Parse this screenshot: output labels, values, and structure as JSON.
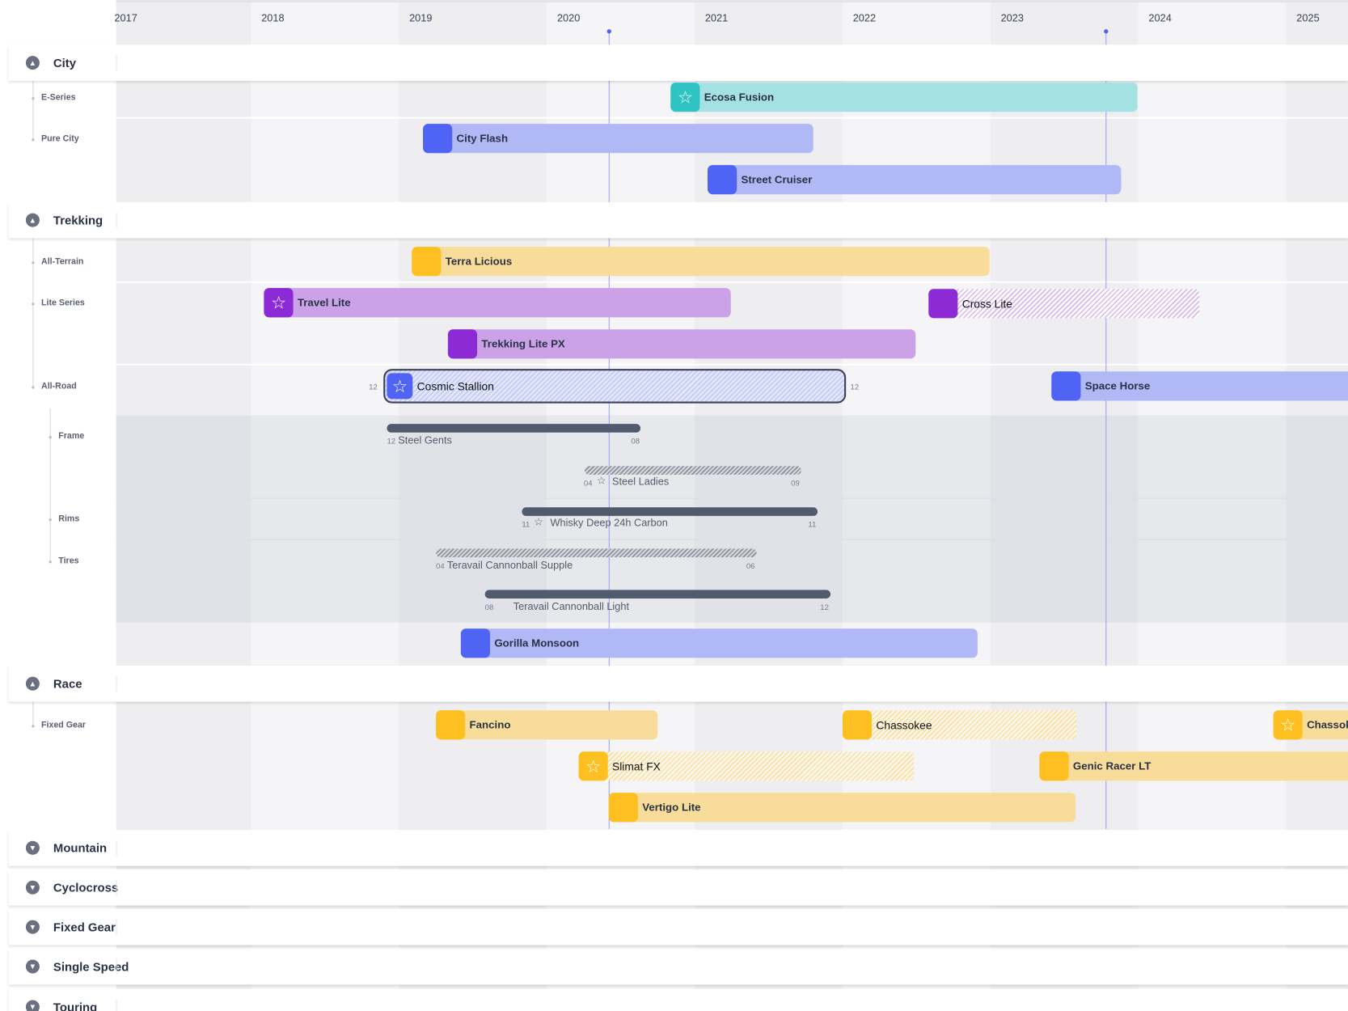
{
  "timeline": {
    "years": [
      "2017",
      "2018",
      "2019",
      "2020",
      "2021",
      "2022",
      "2023",
      "2024",
      "2025"
    ]
  },
  "colors": {
    "blue": "#4f63f5",
    "blue_light": "#b0b8f5",
    "teal": "#2ec4c4",
    "teal_light": "#a3e1e2",
    "yellow": "#fdc020",
    "yellow_light": "#f8dd9a",
    "purple": "#8c2bd6",
    "purple_light": "#cba2e8",
    "sub_bar": "#525a6e",
    "today_line": "#9aa2f2"
  },
  "groups": [
    {
      "label": "City",
      "expanded": true,
      "rows": [
        "E-Series",
        "Pure City"
      ]
    },
    {
      "label": "Trekking",
      "expanded": true,
      "rows": [
        "All-Terrain",
        "Lite Series",
        "All-Road"
      ],
      "subrows": [
        "Frame",
        "Rims",
        "Tires"
      ]
    },
    {
      "label": "Race",
      "expanded": true,
      "rows": [
        "Fixed Gear"
      ]
    },
    {
      "label": "Mountain",
      "expanded": false
    },
    {
      "label": "Cyclocross",
      "expanded": false
    },
    {
      "label": "Fixed Gear",
      "expanded": false
    },
    {
      "label": "Single Speed",
      "expanded": false
    },
    {
      "label": "Touring",
      "expanded": false
    }
  ],
  "bars": {
    "ecosa": {
      "label": "Ecosa Fusion",
      "icon": "star-icon"
    },
    "cityflash": {
      "label": "City Flash"
    },
    "street": {
      "label": "Street Cruiser"
    },
    "terra": {
      "label": "Terra Licious"
    },
    "travel": {
      "label": "Travel Lite",
      "icon": "star-icon"
    },
    "cross": {
      "label": "Cross Lite",
      "hatched": true
    },
    "trekpx": {
      "label": "Trekking Lite PX"
    },
    "cosmic": {
      "label": "Cosmic Stallion",
      "icon": "star-icon",
      "hatched": true,
      "selected": true,
      "start_month": "12",
      "end_month": "12"
    },
    "space": {
      "label": "Space Horse"
    },
    "gorilla": {
      "label": "Gorilla Monsoon"
    },
    "fancino": {
      "label": "Fancino"
    },
    "chassokee": {
      "label": "Chassokee",
      "hatched": true
    },
    "chassok2": {
      "label": "Chassok",
      "icon": "star-icon"
    },
    "slimat": {
      "label": "Slimat FX",
      "icon": "star-icon",
      "hatched": true
    },
    "genic": {
      "label": "Genic Racer LT"
    },
    "vertigo": {
      "label": "Vertigo Lite"
    }
  },
  "parts": [
    {
      "label": "Steel Gents",
      "start": "12",
      "end": "08",
      "hatched": false
    },
    {
      "label": "Steel Ladies",
      "start": "04",
      "end": "09",
      "hatched": true,
      "icon": "star-icon"
    },
    {
      "label": "Whisky Deep 24h Carbon",
      "start": "11",
      "end": "11",
      "hatched": false,
      "icon": "star-icon"
    },
    {
      "label": "Teravail Cannonball Supple",
      "start": "04",
      "end": "06",
      "hatched": true
    },
    {
      "label": "Teravail Cannonball Light",
      "start": "08",
      "end": "12",
      "hatched": false
    }
  ]
}
